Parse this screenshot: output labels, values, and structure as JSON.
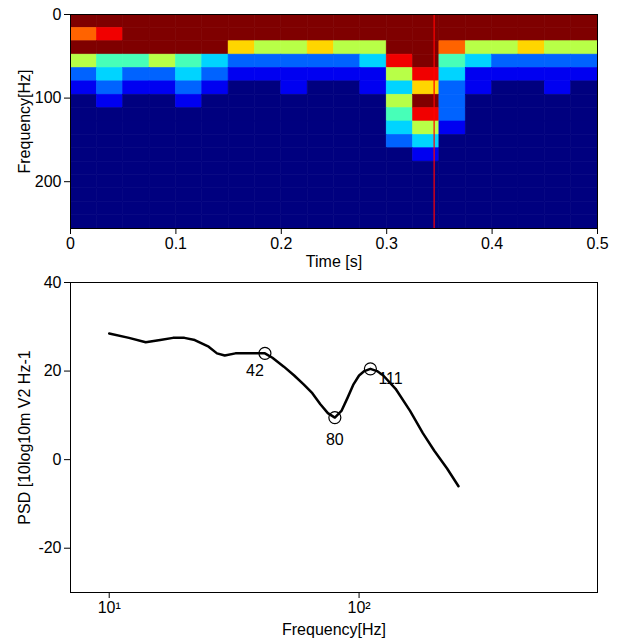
{
  "chart_data": [
    {
      "type": "heatmap",
      "x_label": "Time [s]",
      "y_label": "Frequency[Hz]",
      "xlim": [
        0,
        0.5
      ],
      "xticks": [
        0,
        0.1,
        0.2,
        0.3,
        0.4,
        0.5
      ],
      "ylim": [
        0,
        256
      ],
      "yticks": [
        0,
        100,
        200
      ],
      "time_bins": [
        0,
        0.025,
        0.05,
        0.075,
        0.1,
        0.125,
        0.15,
        0.175,
        0.2,
        0.225,
        0.25,
        0.275,
        0.3,
        0.325,
        0.35,
        0.375,
        0.4,
        0.425,
        0.45,
        0.475,
        0.5
      ],
      "frequency_bins": [
        0,
        16,
        32,
        48,
        64,
        80,
        96,
        112,
        128,
        144,
        160,
        176,
        192,
        208,
        224,
        240,
        256
      ],
      "cells": [
        [
          9,
          9,
          9,
          9,
          9,
          9,
          9,
          9,
          9,
          9,
          9,
          9,
          9,
          9,
          9,
          9,
          9,
          9,
          9,
          9
        ],
        [
          7,
          8,
          9,
          9,
          9,
          9,
          9,
          9,
          9,
          9,
          9,
          9,
          9,
          9,
          9,
          9,
          9,
          9,
          9,
          9
        ],
        [
          9,
          9,
          9,
          9,
          9,
          9,
          6,
          5,
          5,
          6,
          5,
          5,
          9,
          9,
          7,
          5,
          5,
          6,
          5,
          5
        ],
        [
          5,
          4,
          4,
          5,
          4,
          3,
          2,
          2,
          2,
          2,
          2,
          3,
          8,
          9,
          4,
          3,
          2,
          2,
          2,
          2
        ],
        [
          2,
          3,
          2,
          2,
          3,
          2,
          1,
          1,
          1,
          1,
          1,
          1,
          5,
          8,
          3,
          1,
          1,
          1,
          1,
          1
        ],
        [
          1,
          2,
          1,
          1,
          2,
          1,
          0,
          0,
          1,
          0,
          0,
          1,
          3,
          6,
          2,
          1,
          0,
          0,
          1,
          0
        ],
        [
          0,
          1,
          0,
          0,
          1,
          0,
          0,
          0,
          0,
          0,
          0,
          0,
          5,
          9,
          2,
          0,
          0,
          0,
          0,
          0
        ],
        [
          0,
          0,
          0,
          0,
          0,
          0,
          0,
          0,
          0,
          0,
          0,
          0,
          4,
          8,
          2,
          0,
          0,
          0,
          0,
          0
        ],
        [
          0,
          0,
          0,
          0,
          0,
          0,
          0,
          0,
          0,
          0,
          0,
          0,
          3,
          5,
          1,
          0,
          0,
          0,
          0,
          0
        ],
        [
          0,
          0,
          0,
          0,
          0,
          0,
          0,
          0,
          0,
          0,
          0,
          0,
          2,
          3,
          0,
          0,
          0,
          0,
          0,
          0
        ],
        [
          0,
          0,
          0,
          0,
          0,
          0,
          0,
          0,
          0,
          0,
          0,
          0,
          0,
          1,
          0,
          0,
          0,
          0,
          0,
          0
        ],
        [
          0,
          0,
          0,
          0,
          0,
          0,
          0,
          0,
          0,
          0,
          0,
          0,
          0,
          0,
          0,
          0,
          0,
          0,
          0,
          0
        ],
        [
          0,
          0,
          0,
          0,
          0,
          0,
          0,
          0,
          0,
          0,
          0,
          0,
          0,
          0,
          0,
          0,
          0,
          0,
          0,
          0
        ],
        [
          0,
          0,
          0,
          0,
          0,
          0,
          0,
          0,
          0,
          0,
          0,
          0,
          0,
          0,
          0,
          0,
          0,
          0,
          0,
          0
        ],
        [
          0,
          0,
          0,
          0,
          0,
          0,
          0,
          0,
          0,
          0,
          0,
          0,
          0,
          0,
          0,
          0,
          0,
          0,
          0,
          0
        ],
        [
          0,
          0,
          0,
          0,
          0,
          0,
          0,
          0,
          0,
          0,
          0,
          0,
          0,
          0,
          0,
          0,
          0,
          0,
          0,
          0
        ]
      ],
      "color": "jet",
      "clim": [
        0,
        9
      ],
      "vline": {
        "x": 0.345,
        "color": "#ff0000"
      }
    },
    {
      "type": "line",
      "x_label": "Frequency[Hz]",
      "y_label": "PSD [10log10m V2 Hz-1",
      "log": "x",
      "xlim": [
        7,
        900
      ],
      "xticks": [
        {
          "value": 10,
          "label": "10¹"
        },
        {
          "value": 100,
          "label": "10²"
        }
      ],
      "ylim": [
        -30,
        40
      ],
      "yticks": [
        -20,
        0,
        20,
        40
      ],
      "color": "#000000",
      "x": [
        10,
        12,
        14,
        16,
        18,
        20,
        22,
        25,
        27,
        29,
        32,
        35,
        38,
        42,
        45,
        50,
        55,
        60,
        65,
        70,
        75,
        80,
        85,
        90,
        95,
        100,
        105,
        111,
        118,
        125,
        140,
        160,
        180,
        200,
        225,
        250
      ],
      "values": [
        28.5,
        27.5,
        26.5,
        27,
        27.5,
        27.5,
        27,
        25.5,
        24,
        23.5,
        24,
        24,
        24,
        24,
        23,
        21,
        19,
        17,
        15,
        12.5,
        10.5,
        9.5,
        11,
        14,
        17,
        19,
        20,
        20.5,
        20,
        19,
        16,
        11,
        6,
        2,
        -2,
        -6
      ],
      "annotations": [
        {
          "x": 42,
          "y": 24,
          "label": "42"
        },
        {
          "x": 80,
          "y": 9.5,
          "label": "80"
        },
        {
          "x": 111,
          "y": 20.5,
          "label": "111"
        }
      ]
    }
  ]
}
